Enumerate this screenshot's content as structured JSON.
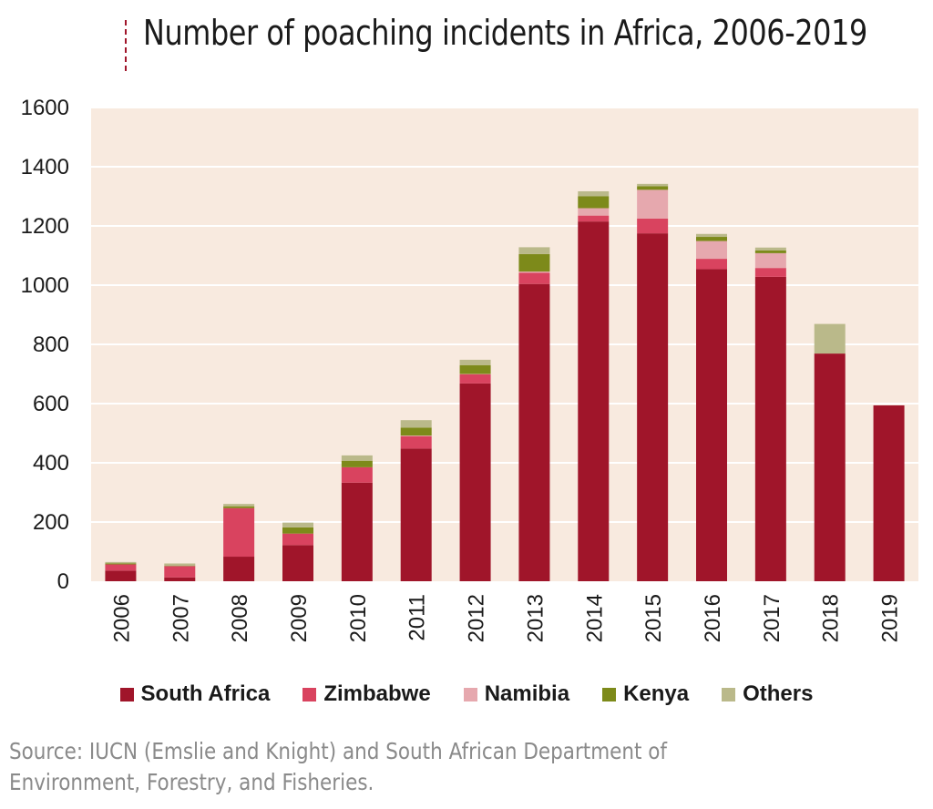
{
  "chart_data": {
    "type": "bar",
    "stacked": true,
    "title": "Number of poaching incidents in Africa, 2006-2019",
    "xlabel": "",
    "ylabel": "",
    "ylim": [
      0,
      1600
    ],
    "yticks": [
      0,
      200,
      400,
      600,
      800,
      1000,
      1200,
      1400,
      1600
    ],
    "grid": true,
    "legend_position": "bottom",
    "categories": [
      "2006",
      "2007",
      "2008",
      "2009",
      "2010",
      "2011",
      "2012",
      "2013",
      "2014",
      "2015",
      "2016",
      "2017",
      "2018",
      "2019"
    ],
    "series": [
      {
        "name": "South Africa",
        "color": "#a0152a",
        "values": [
          36,
          13,
          83,
          122,
          333,
          448,
          668,
          1004,
          1215,
          1175,
          1054,
          1028,
          769,
          594
        ]
      },
      {
        "name": "Zimbabwe",
        "color": "#d9435f",
        "values": [
          21,
          38,
          164,
          39,
          52,
          42,
          31,
          38,
          20,
          50,
          35,
          30,
          0,
          0
        ]
      },
      {
        "name": "Namibia",
        "color": "#e6a8ae",
        "values": [
          0,
          0,
          0,
          0,
          0,
          2,
          1,
          4,
          25,
          97,
          60,
          50,
          0,
          0
        ]
      },
      {
        "name": "Kenya",
        "color": "#7d8a1a",
        "values": [
          3,
          1,
          6,
          21,
          22,
          27,
          30,
          59,
          40,
          12,
          14,
          9,
          0,
          0
        ]
      },
      {
        "name": "Others",
        "color": "#bab98a",
        "values": [
          5,
          8,
          8,
          16,
          18,
          25,
          18,
          23,
          17,
          8,
          10,
          10,
          100,
          0
        ]
      }
    ]
  },
  "source_note": "Source: IUCN (Emslie and Knight) and South African Department of Environment, Forestry, and Fisheries."
}
